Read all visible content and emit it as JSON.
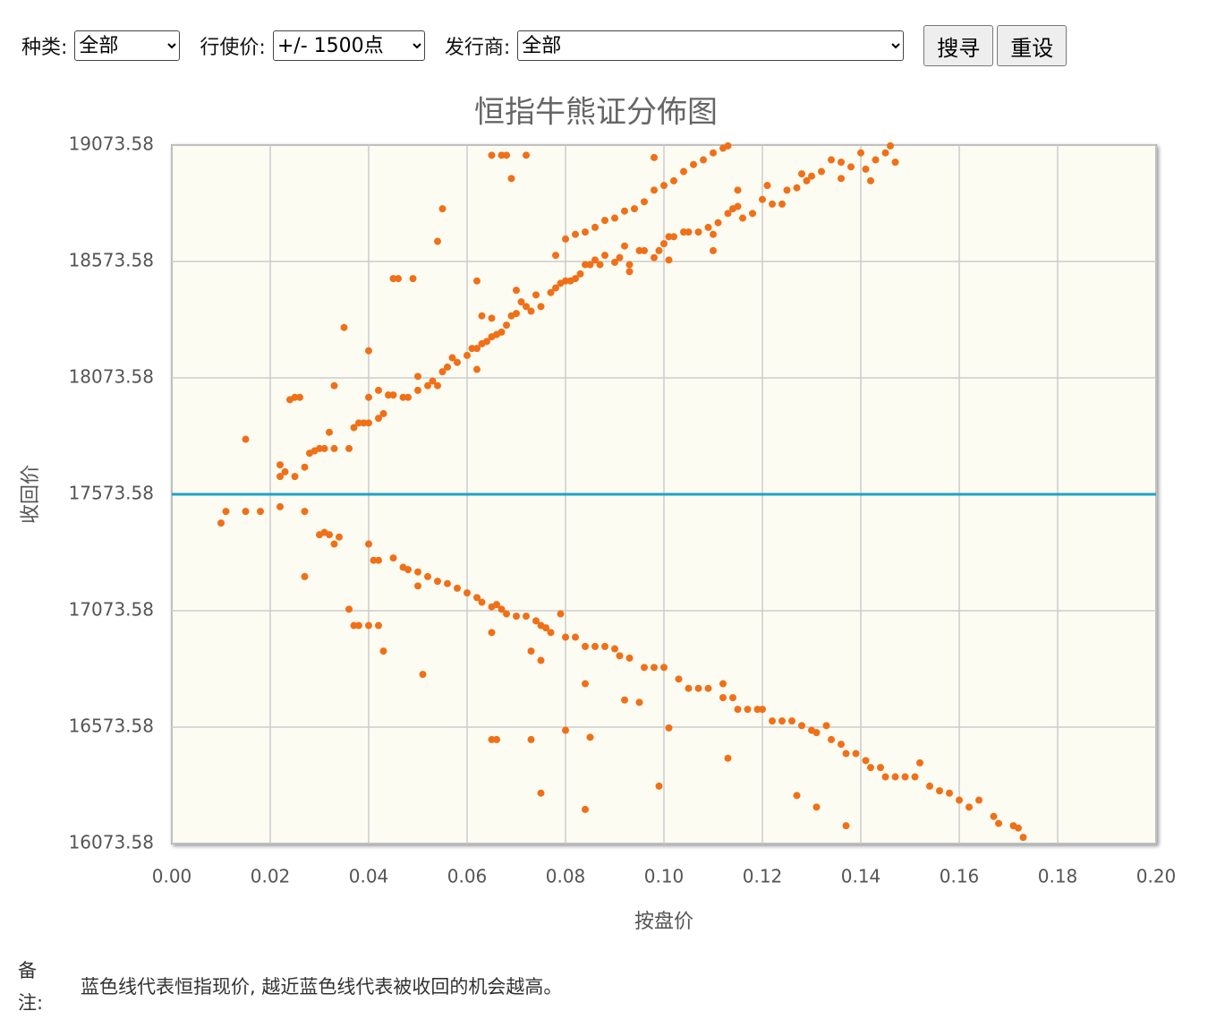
{
  "form": {
    "type_label": "种类:",
    "type_value": "全部",
    "strike_label": "行使价:",
    "strike_value": "+/- 1500点",
    "issuer_label": "发行商:",
    "issuer_value": "全部",
    "search_button": "搜寻",
    "reset_button": "重设"
  },
  "chart_data": {
    "type": "scatter",
    "title": "恒指牛熊证分佈图",
    "x_label": "按盘价",
    "y_label": "收回价",
    "color": "#f07018",
    "xlim": [
      0,
      0.2
    ],
    "xticks": [
      {
        "value": 0,
        "label": "0.00"
      },
      {
        "value": 0.02,
        "label": "0.02"
      },
      {
        "value": 0.04,
        "label": "0.04"
      },
      {
        "value": 0.06,
        "label": "0.06"
      },
      {
        "value": 0.08,
        "label": "0.08"
      },
      {
        "value": 0.1,
        "label": "0.10"
      },
      {
        "value": 0.12,
        "label": "0.12"
      },
      {
        "value": 0.14,
        "label": "0.14"
      },
      {
        "value": 0.16,
        "label": "0.16"
      },
      {
        "value": 0.18,
        "label": "0.18"
      },
      {
        "value": 0.2,
        "label": "0.20"
      }
    ],
    "ylim": [
      16073.58,
      19073.58
    ],
    "yticks": [
      16073.58,
      16573.58,
      17073.58,
      17573.58,
      18073.58,
      18573.58,
      19073.58
    ],
    "grid": true,
    "reference_line": {
      "value": 17573.58,
      "color": "#1ea3c4"
    },
    "x": [
      0.01,
      0.011,
      0.015,
      0.018,
      0.022,
      0.027,
      0.027,
      0.03,
      0.031,
      0.032,
      0.033,
      0.034,
      0.036,
      0.037,
      0.038,
      0.04,
      0.042,
      0.043,
      0.04,
      0.041,
      0.042,
      0.045,
      0.047,
      0.048,
      0.05,
      0.05,
      0.051,
      0.052,
      0.054,
      0.056,
      0.058,
      0.06,
      0.062,
      0.063,
      0.065,
      0.066,
      0.067,
      0.065,
      0.068,
      0.07,
      0.072,
      0.074,
      0.075,
      0.076,
      0.077,
      0.079,
      0.08,
      0.073,
      0.075,
      0.082,
      0.084,
      0.086,
      0.088,
      0.09,
      0.091,
      0.093,
      0.096,
      0.098,
      0.1,
      0.084,
      0.092,
      0.095,
      0.103,
      0.105,
      0.107,
      0.109,
      0.112,
      0.112,
      0.114,
      0.115,
      0.117,
      0.119,
      0.12,
      0.122,
      0.124,
      0.126,
      0.128,
      0.13,
      0.131,
      0.133,
      0.134,
      0.136,
      0.137,
      0.139,
      0.141,
      0.142,
      0.144,
      0.145,
      0.147,
      0.149,
      0.151,
      0.152,
      0.154,
      0.156,
      0.158,
      0.16,
      0.162,
      0.164,
      0.167,
      0.168,
      0.171,
      0.172,
      0.173,
      0.113,
      0.101,
      0.099,
      0.127,
      0.131,
      0.137,
      0.065,
      0.066,
      0.073,
      0.08,
      0.085,
      0.075,
      0.084,
      0.015,
      0.022,
      0.022,
      0.023,
      0.025,
      0.024,
      0.025,
      0.026,
      0.027,
      0.028,
      0.029,
      0.03,
      0.031,
      0.033,
      0.032,
      0.033,
      0.035,
      0.036,
      0.037,
      0.038,
      0.039,
      0.04,
      0.04,
      0.04,
      0.042,
      0.042,
      0.043,
      0.044,
      0.045,
      0.045,
      0.046,
      0.047,
      0.048,
      0.049,
      0.05,
      0.05,
      0.052,
      0.053,
      0.054,
      0.055,
      0.054,
      0.055,
      0.056,
      0.057,
      0.058,
      0.06,
      0.061,
      0.062,
      0.062,
      0.063,
      0.064,
      0.065,
      0.062,
      0.063,
      0.065,
      0.066,
      0.067,
      0.068,
      0.069,
      0.07,
      0.071,
      0.072,
      0.073,
      0.075,
      0.077,
      0.078,
      0.079,
      0.08,
      0.081,
      0.082,
      0.083,
      0.084,
      0.085,
      0.086,
      0.087,
      0.088,
      0.09,
      0.091,
      0.092,
      0.093,
      0.095,
      0.096,
      0.098,
      0.099,
      0.1,
      0.101,
      0.102,
      0.104,
      0.105,
      0.107,
      0.109,
      0.11,
      0.111,
      0.113,
      0.114,
      0.115,
      0.116,
      0.118,
      0.12,
      0.122,
      0.124,
      0.125,
      0.127,
      0.129,
      0.13,
      0.132,
      0.134,
      0.136,
      0.138,
      0.14,
      0.141,
      0.143,
      0.145,
      0.146,
      0.078,
      0.08,
      0.082,
      0.084,
      0.086,
      0.088,
      0.09,
      0.092,
      0.094,
      0.096,
      0.098,
      0.1,
      0.102,
      0.104,
      0.106,
      0.108,
      0.11,
      0.112,
      0.113,
      0.074,
      0.07,
      0.068,
      0.065,
      0.067,
      0.072,
      0.069,
      0.098,
      0.115,
      0.121,
      0.128,
      0.136,
      0.142,
      0.147,
      0.101,
      0.093,
      0.11
    ],
    "values": [
      17450,
      17500,
      17500,
      17500,
      17520,
      17500,
      17220,
      17400,
      17410,
      17400,
      17360,
      17390,
      17080,
      17010,
      17010,
      17010,
      17010,
      16900,
      17360,
      17290,
      17290,
      17300,
      17260,
      17250,
      17240,
      17180,
      16800,
      17220,
      17200,
      17190,
      17170,
      17150,
      17130,
      17110,
      17090,
      17100,
      17080,
      16980,
      17060,
      17050,
      17050,
      17030,
      17010,
      17000,
      16980,
      17060,
      16960,
      16900,
      16860,
      16960,
      16920,
      16920,
      16920,
      16910,
      16880,
      16870,
      16830,
      16830,
      16830,
      16760,
      16690,
      16680,
      16780,
      16740,
      16740,
      16740,
      16760,
      16700,
      16700,
      16650,
      16650,
      16650,
      16650,
      16600,
      16600,
      16600,
      16580,
      16560,
      16550,
      16580,
      16520,
      16500,
      16460,
      16460,
      16430,
      16400,
      16400,
      16360,
      16360,
      16360,
      16360,
      16420,
      16320,
      16300,
      16290,
      16260,
      16230,
      16260,
      16190,
      16160,
      16150,
      16140,
      16100,
      16440,
      16570,
      16320,
      16280,
      16230,
      16150,
      16520,
      16520,
      16520,
      16560,
      16530,
      16290,
      16220,
      17810,
      17700,
      17650,
      17670,
      17650,
      17980,
      17990,
      17990,
      17690,
      17750,
      17760,
      17770,
      17770,
      17770,
      17840,
      18040,
      18290,
      17770,
      17860,
      17880,
      17880,
      17880,
      17990,
      18190,
      17900,
      18020,
      17920,
      18000,
      18000,
      18500,
      18500,
      17990,
      17990,
      18500,
      18020,
      18080,
      18040,
      18060,
      18040,
      18100,
      18660,
      18800,
      18120,
      18160,
      18140,
      18170,
      18200,
      18110,
      18200,
      18220,
      18230,
      18250,
      18490,
      18340,
      18330,
      18260,
      18270,
      18300,
      18340,
      18350,
      18400,
      18380,
      18360,
      18380,
      18440,
      18460,
      18480,
      18490,
      18490,
      18500,
      18520,
      18560,
      18560,
      18580,
      18560,
      18600,
      18570,
      18590,
      18640,
      18560,
      18620,
      18620,
      18590,
      18620,
      18650,
      18680,
      18680,
      18700,
      18700,
      18700,
      18720,
      18690,
      18740,
      18780,
      18800,
      18810,
      18760,
      18780,
      18840,
      18820,
      18820,
      18880,
      18890,
      18920,
      18940,
      18960,
      19010,
      19000,
      18980,
      19040,
      18970,
      19010,
      19040,
      19070,
      18600,
      18670,
      18690,
      18700,
      18720,
      18750,
      18760,
      18790,
      18800,
      18830,
      18880,
      18900,
      18920,
      18960,
      18990,
      19010,
      19040,
      19060,
      19070,
      18430,
      18450,
      19030,
      19030,
      19030,
      19030,
      18930,
      19020,
      18880,
      18900,
      18950,
      18930,
      18920,
      19000,
      18580,
      18530,
      18620
    ]
  },
  "note": {
    "label": "备注:",
    "text": "蓝色线代表恒指现价, 越近蓝色线代表被收回的机会越高。"
  }
}
